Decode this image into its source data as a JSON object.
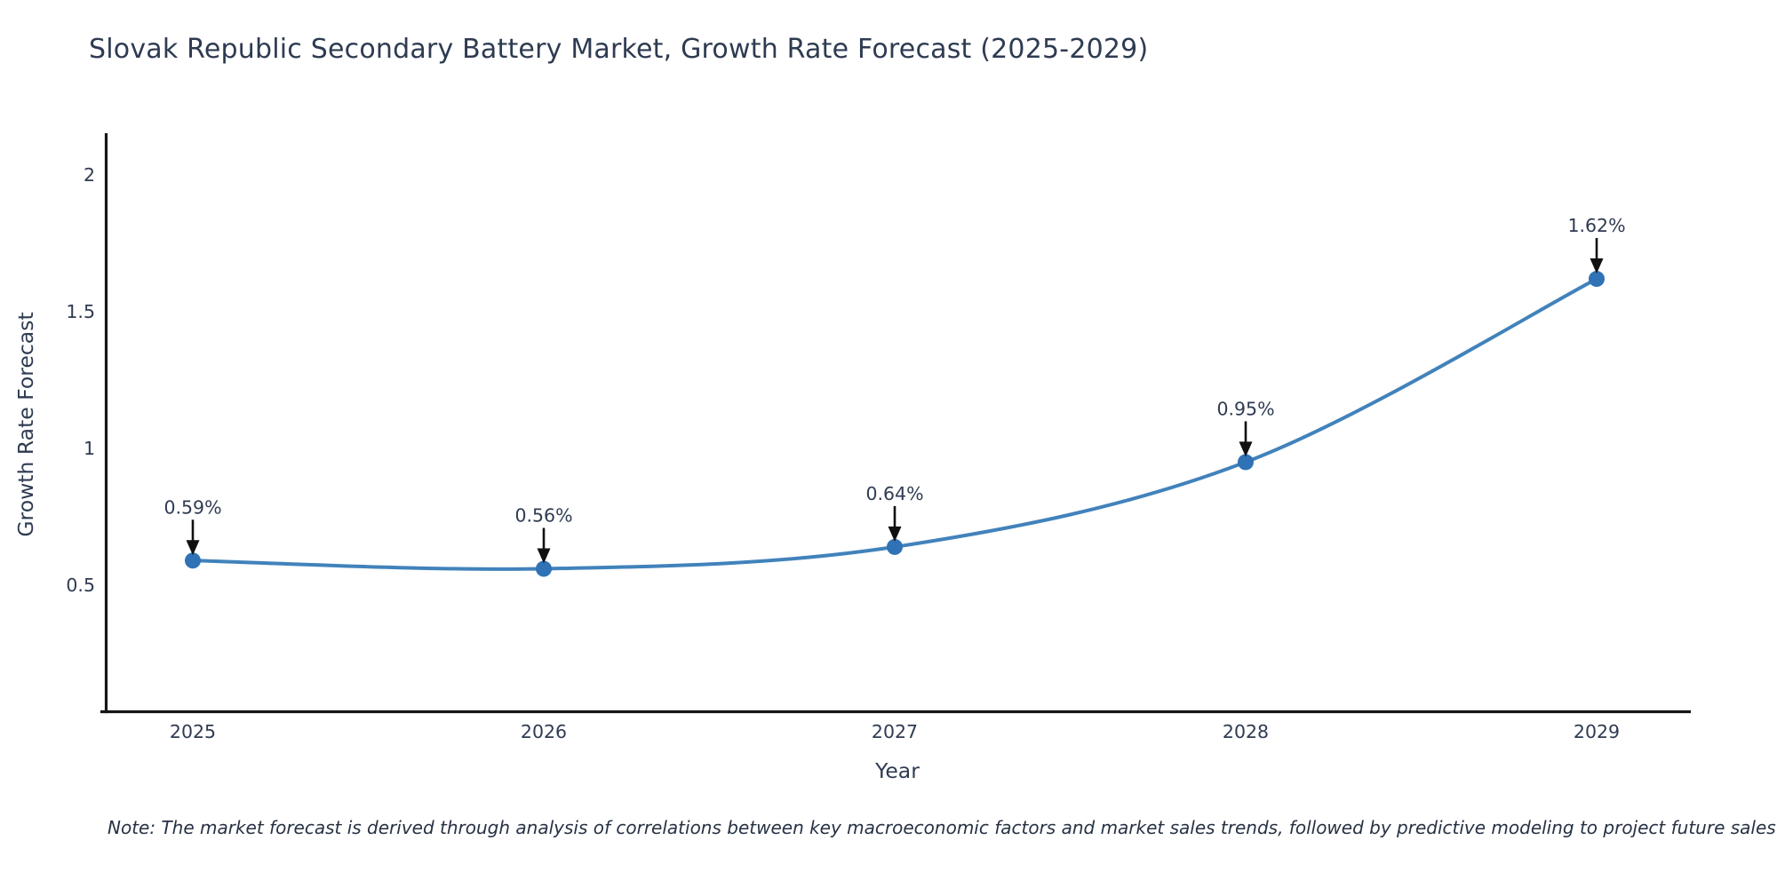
{
  "chart_data": {
    "type": "line",
    "title": "Slovak Republic Secondary Battery Market, Growth Rate Forecast (2025-2029)",
    "x_categories": [
      "2025",
      "2026",
      "2027",
      "2028",
      "2029"
    ],
    "series": [
      {
        "name": "Growth Rate Forecast",
        "values": [
          0.59,
          0.56,
          0.64,
          0.95,
          1.62
        ]
      }
    ],
    "point_labels": [
      "0.59%",
      "0.56%",
      "0.64%",
      "0.95%",
      "1.62%"
    ],
    "xlabel": "Year",
    "ylabel": "Growth Rate Forecast",
    "yticks": {
      "values": [
        0.5,
        1,
        1.5,
        2
      ],
      "labels": [
        "0.5",
        "1",
        "1.5",
        "2"
      ]
    },
    "ylim": [
      0.04,
      2.15
    ],
    "line_shape": "spline",
    "grid": false,
    "legend": false,
    "annotation_style": "down-arrow-to-point",
    "colors": {
      "line": "#4182bb",
      "marker": "#2f72b5",
      "axis": "#161616",
      "arrow": "#111111",
      "text": "#2f3b52"
    }
  },
  "note": "Note: The market forecast is derived through analysis of correlations between key macroeconomic factors and market sales trends, followed by predictive modeling to project future sales"
}
